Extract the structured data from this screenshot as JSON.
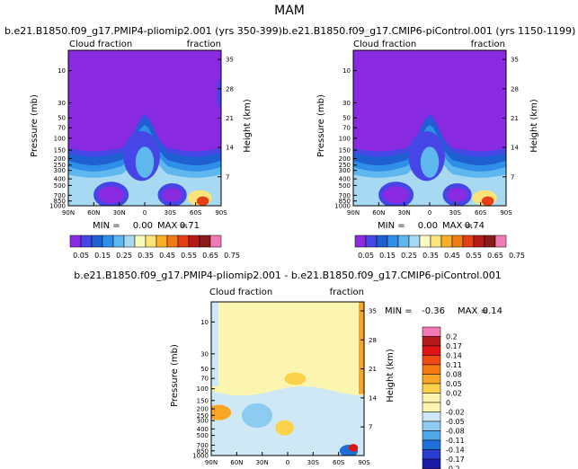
{
  "suptitle": "MAM",
  "chart_data": [
    {
      "type": "heatmap",
      "title": "b.e21.B1850.f09_g17.PMIP4-pliomip2.001 (yrs 350-399)",
      "left_label": "Cloud fraction",
      "right_label": "fraction",
      "xlabel": "",
      "ylabel": "Pressure (mb)",
      "y2label": "Height (km)",
      "x_ticks": [
        "90N",
        "60N",
        "30N",
        "0",
        "30S",
        "60S",
        "90S"
      ],
      "y_ticks": [
        "10",
        "30",
        "50",
        "70",
        "100",
        "150",
        "200",
        "250",
        "300",
        "400",
        "500",
        "700",
        "850",
        "1000"
      ],
      "y2_ticks": [
        "35",
        "28",
        "21",
        "14",
        "7"
      ],
      "stats": {
        "min_label": "MIN =",
        "min": "0.00",
        "max_label": "MAX =",
        "max": "0.71"
      },
      "colorbar_labels": [
        "0.05",
        "0.15",
        "0.25",
        "0.35",
        "0.45",
        "0.55",
        "0.65",
        "0.75"
      ],
      "colorbar_colors": [
        "#8a2be2",
        "#4646e6",
        "#1e5fd2",
        "#2f8ee8",
        "#5fb7f0",
        "#a8d9f2",
        "#fafabe",
        "#fde47a",
        "#f9b028",
        "#f07a13",
        "#e33e14",
        "#b51a1a",
        "#8b1a1a",
        "#f07ab4"
      ]
    },
    {
      "type": "heatmap",
      "title": "b.e21.B1850.f09_g17.CMIP6-piControl.001 (yrs 1150-1199)",
      "left_label": "Cloud fraction",
      "right_label": "fraction",
      "xlabel": "",
      "ylabel": "Pressure (mb)",
      "y2label": "Height (km)",
      "x_ticks": [
        "90N",
        "60N",
        "30N",
        "0",
        "30S",
        "60S",
        "90S"
      ],
      "y_ticks": [
        "10",
        "30",
        "50",
        "70",
        "100",
        "150",
        "200",
        "250",
        "300",
        "400",
        "500",
        "700",
        "850",
        "1000"
      ],
      "y2_ticks": [
        "35",
        "28",
        "21",
        "14",
        "7"
      ],
      "stats": {
        "min_label": "MIN =",
        "min": "0.00",
        "max_label": "MAX =",
        "max": "0.74"
      },
      "colorbar_labels": [
        "0.05",
        "0.15",
        "0.25",
        "0.35",
        "0.45",
        "0.55",
        "0.65",
        "0.75"
      ],
      "colorbar_colors": [
        "#8a2be2",
        "#4646e6",
        "#1e5fd2",
        "#2f8ee8",
        "#5fb7f0",
        "#a8d9f2",
        "#fafabe",
        "#fde47a",
        "#f9b028",
        "#f07a13",
        "#e33e14",
        "#b51a1a",
        "#8b1a1a",
        "#f07ab4"
      ]
    },
    {
      "type": "heatmap",
      "title": "b.e21.B1850.f09_g17.PMIP4-pliomip2.001 - b.e21.B1850.f09_g17.CMIP6-piControl.001",
      "left_label": "Cloud fraction",
      "right_label": "fraction",
      "xlabel": "",
      "ylabel": "Pressure (mb)",
      "y2label": "Height (km)",
      "x_ticks": [
        "90N",
        "60N",
        "30N",
        "0",
        "30S",
        "60S",
        "90S"
      ],
      "y_ticks": [
        "10",
        "30",
        "50",
        "70",
        "100",
        "150",
        "200",
        "250",
        "300",
        "400",
        "500",
        "700",
        "850",
        "1000"
      ],
      "y2_ticks": [
        "35",
        "28",
        "21",
        "14",
        "7"
      ],
      "stats": {
        "min_label": "MIN =",
        "min": "-0.36",
        "max_label": "MAX =",
        "max": "0.14"
      },
      "colorbar_labels": [
        "0.2",
        "0.17",
        "0.14",
        "0.11",
        "0.08",
        "0.05",
        "0.02",
        "0",
        "-0.02",
        "-0.05",
        "-0.08",
        "-0.11",
        "-0.14",
        "-0.17",
        "-0.2"
      ],
      "colorbar_colors": [
        "#f07ab4",
        "#b51a1a",
        "#e01414",
        "#f04a14",
        "#f47a14",
        "#f9a526",
        "#fbd24a",
        "#fbf5b0",
        "#fbf5b0",
        "#cfe8f5",
        "#8ecbf0",
        "#4fa6e8",
        "#1e6fd8",
        "#2a3fd2",
        "#1a1aa8",
        "#8a2be2"
      ]
    }
  ]
}
